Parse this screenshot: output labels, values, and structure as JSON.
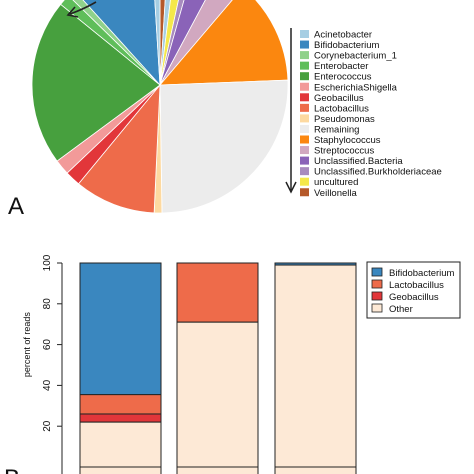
{
  "panel_labels": {
    "a": "A",
    "b": "B"
  },
  "colors": {
    "Acinetobacter": "#a6cee3",
    "Bifidobacterium": "#3a87bf",
    "Corynebacterium_1": "#8fd18a",
    "Enterobacter": "#5fbe5a",
    "Enterococcus": "#47a03e",
    "EscherichiaShigella": "#f29a99",
    "Geobacillus": "#e2363a",
    "Lactobacillus": "#ee6b4a",
    "Pseudomonas": "#fdd9a0",
    "Remaining": "#ececec",
    "Staphylococcus": "#fb870f",
    "Streptococcus": "#d1a8c0",
    "Unclassified.Bacteria": "#8a63b8",
    "Unclassified.Burkholderiaceae": "#a88bbf",
    "uncultured": "#f5e84a",
    "Veillonella": "#b5592a",
    "Other": "#fde9d6"
  },
  "chart_data": [
    {
      "type": "pie",
      "panel": "A",
      "legend": [
        "Acinetobacter",
        "Bifidobacterium",
        "Corynebacterium_1",
        "Enterobacter",
        "Enterococcus",
        "EscherichiaShigella",
        "Geobacillus",
        "Lactobacillus",
        "Pseudomonas",
        "Remaining",
        "Staphylococcus",
        "Streptococcus",
        "Unclassified.Bacteria",
        "Unclassified.Burkholderiaceae",
        "uncultured",
        "Veillonella"
      ],
      "slices": [
        {
          "name": "Veillonella",
          "value": 1.0
        },
        {
          "name": "Acinetobacter",
          "value": 1.0
        },
        {
          "name": "uncultured",
          "value": 1.5
        },
        {
          "name": "Unclassified.Burkholderiaceae",
          "value": 1.0
        },
        {
          "name": "Unclassified.Bacteria",
          "value": 3.5
        },
        {
          "name": "Streptococcus",
          "value": 3.5
        },
        {
          "name": "Staphylococcus",
          "value": 13.5
        },
        {
          "name": "Remaining",
          "value": 26.0
        },
        {
          "name": "Pseudomonas",
          "value": 1.0
        },
        {
          "name": "Lactobacillus",
          "value": 10.5
        },
        {
          "name": "Geobacillus",
          "value": 2.0
        },
        {
          "name": "EscherichiaShigella",
          "value": 2.0
        },
        {
          "name": "Enterococcus",
          "value": 21.5
        },
        {
          "name": "Enterobacter",
          "value": 1.5
        },
        {
          "name": "Corynebacterium_1",
          "value": 1.0
        },
        {
          "name": "Bifidobacterium",
          "value": 11.0
        },
        {
          "name": "Acinetobacter",
          "value": 1.0
        }
      ]
    },
    {
      "type": "bar",
      "stacked": true,
      "panel": "B",
      "ylabel": "percent of reads",
      "ylim": [
        0,
        100
      ],
      "yticks": [
        20,
        40,
        60,
        80,
        100
      ],
      "categories": [
        "",
        "",
        ""
      ],
      "series": [
        {
          "name": "Other",
          "values": [
            22,
            71,
            99
          ]
        },
        {
          "name": "Geobacillus",
          "values": [
            4,
            0,
            0
          ]
        },
        {
          "name": "Lactobacillus",
          "values": [
            9.5,
            29,
            0
          ]
        },
        {
          "name": "Bifidobacterium",
          "values": [
            64.5,
            0,
            1
          ]
        }
      ],
      "legend": [
        "Bifidobacterium",
        "Lactobacillus",
        "Geobacillus",
        "Other"
      ]
    }
  ]
}
